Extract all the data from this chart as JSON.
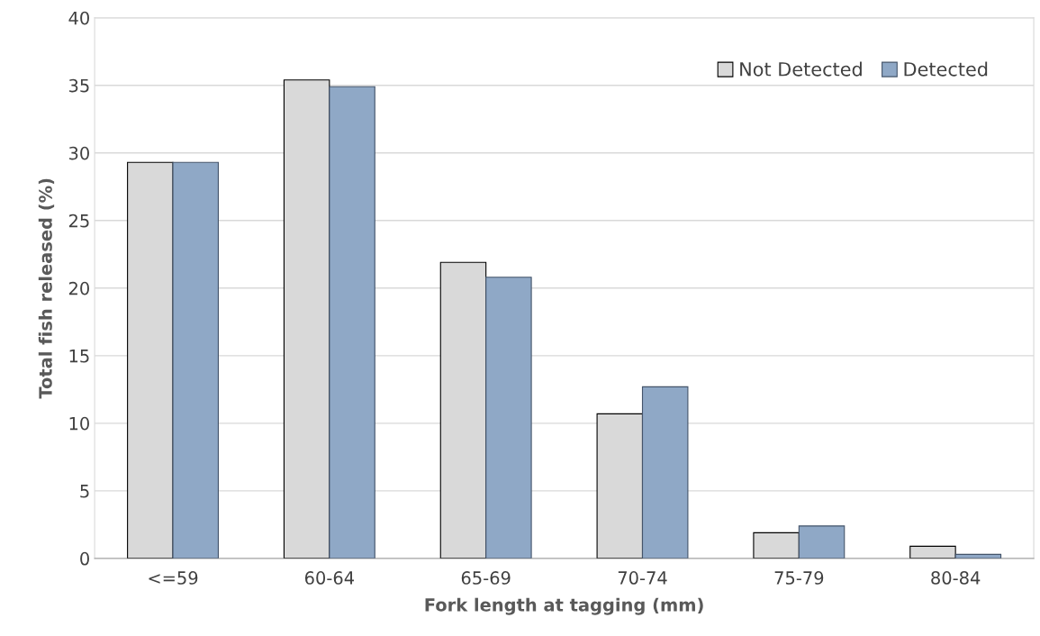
{
  "chart_data": {
    "type": "bar",
    "xlabel": "Fork length at tagging (mm)",
    "ylabel": "Total fish released (%)",
    "categories": [
      "<=59",
      "60-64",
      "65-69",
      "70-74",
      "75-79",
      "80-84"
    ],
    "series": [
      {
        "name": "Not Detected",
        "color": "#d9d9d9",
        "values": [
          29.3,
          35.4,
          21.9,
          10.7,
          1.9,
          0.9
        ]
      },
      {
        "name": "Detected",
        "color": "#8fa8c6",
        "values": [
          29.3,
          34.9,
          20.8,
          12.7,
          2.4,
          0.3
        ]
      }
    ],
    "ylim": [
      0,
      40
    ],
    "yticks": [
      0,
      5,
      10,
      15,
      20,
      25,
      30,
      35,
      40
    ],
    "grid": "y",
    "legend": "top right"
  }
}
